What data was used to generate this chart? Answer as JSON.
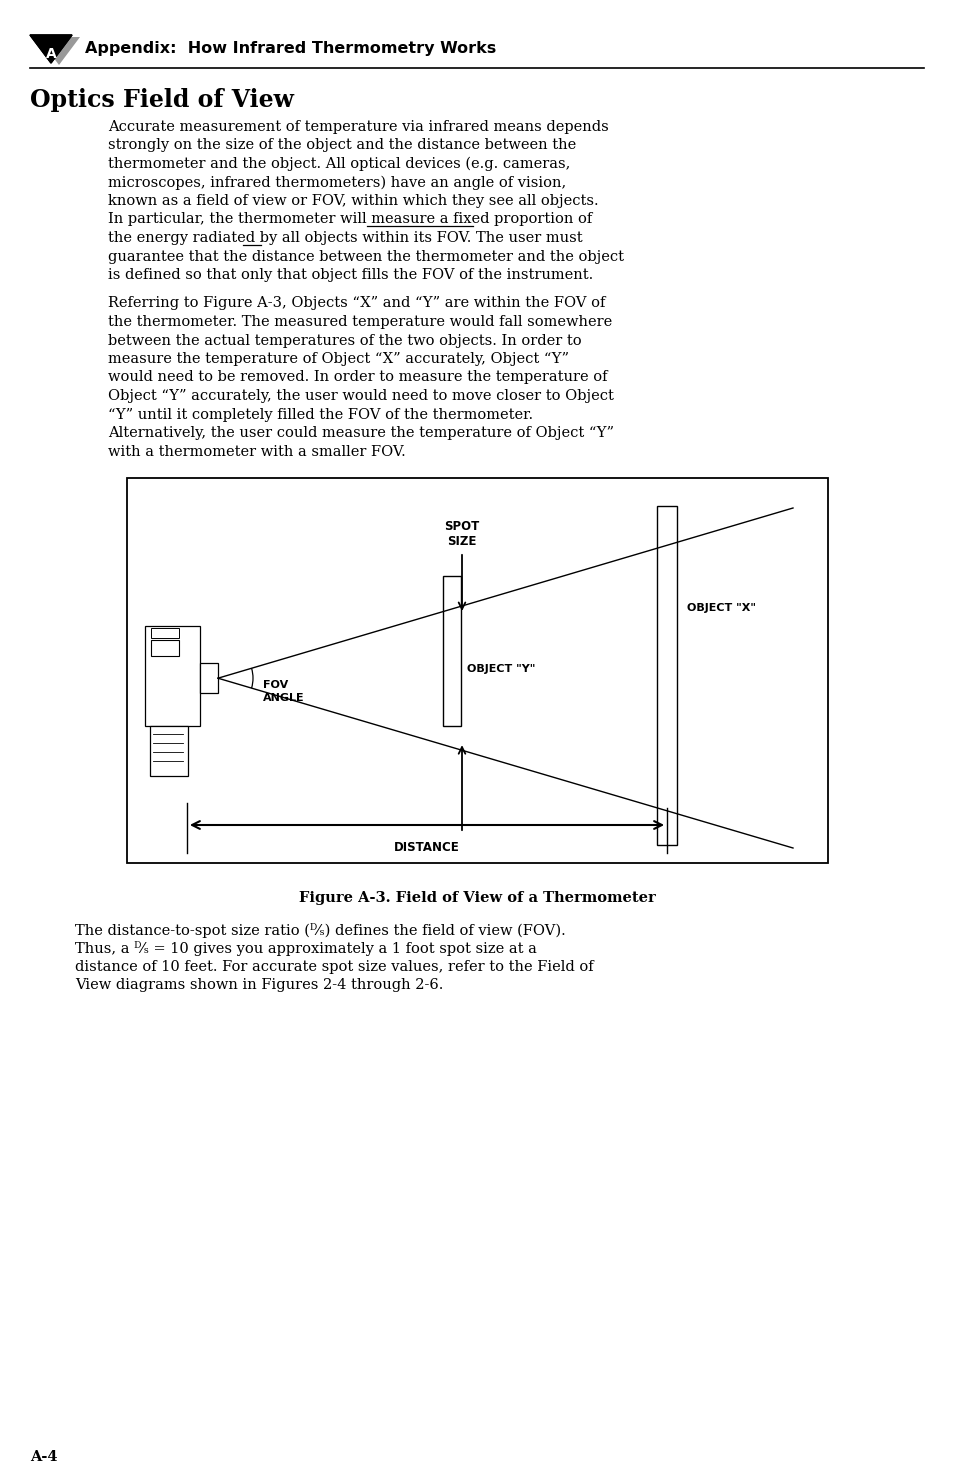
{
  "page_bg": "#ffffff",
  "header_text": "Appendix:  How Infrared Thermometry Works",
  "section_title": "Optics Field of View",
  "para1_lines": [
    "Accurate measurement of temperature via infrared means depends",
    "strongly on the size of the object and the distance between the",
    "thermometer and the object. All optical devices (e.g. cameras,",
    "microscopes, infrared thermometers) have an angle of vision,",
    "known as a field of view or FOV, within which they see all objects.",
    "In particular, the thermometer will measure a fixed proportion of",
    "the energy radiated by all objects within its FOV. The user must",
    "guarantee that the distance between the thermometer and the object",
    "is defined so that only that object fills the FOV of the instrument."
  ],
  "para2_lines": [
    "Referring to Figure A-3, Objects “X” and “Y” are within the FOV of",
    "the thermometer. The measured temperature would fall somewhere",
    "between the actual temperatures of the two objects. In order to",
    "measure the temperature of Object “X” accurately, Object “Y”",
    "would need to be removed. In order to measure the temperature of",
    "Object “Y” accurately, the user would need to move closer to Object",
    "“Y” until it completely filled the FOV of the thermometer.",
    "Alternatively, the user could measure the temperature of Object “Y”",
    "with a thermometer with a smaller FOV."
  ],
  "figure_caption": "Figure A-3. Field of View of a Thermometer",
  "para3_lines": [
    "The distance-to-spot size ratio (ᴰ⁄ₛ) defines the field of view (FOV).",
    "Thus, a ᴰ⁄ₛ = 10 gives you approximately a 1 foot spot size at a",
    "distance of 10 feet. For accurate spot size values, refer to the Field of",
    "View diagrams shown in Figures 2-4 through 2-6."
  ],
  "footer_text": "A-4",
  "ul5_prefix": "In particular, the thermometer will measure ",
  "ul5_text": "a fixed proportion",
  "ul6_prefix": "the energy radiated by ",
  "ul6_text": "all"
}
